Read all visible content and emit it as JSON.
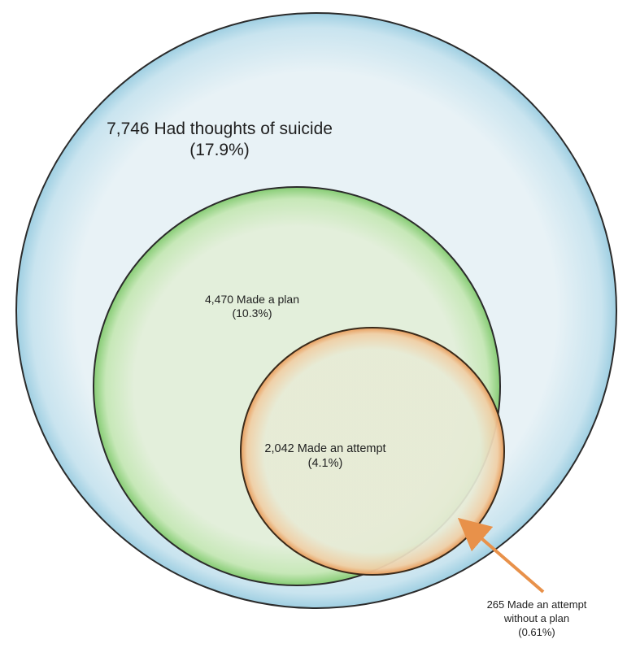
{
  "circles": {
    "thoughts": {
      "count_label": "7,746 Had thoughts of suicide",
      "pct_label": "(17.9%)",
      "count": 7746,
      "percent": 17.9,
      "fill": "#e6f1f6",
      "edge": "#a9d3e4",
      "stroke": "#2b2b2b"
    },
    "plan": {
      "count_label": "4,470 Made a plan",
      "pct_label": "(10.3%)",
      "count": 4470,
      "percent": 10.3,
      "fill": "#e2f0d8",
      "edge": "#8fd07f",
      "stroke": "#2b2b2b"
    },
    "attempt": {
      "count_label": "2,042 Made an attempt",
      "pct_label": "(4.1%)",
      "count": 2042,
      "percent": 4.1,
      "fill": "#e6ead2",
      "edge": "#e8a56a",
      "stroke": "#3a2a1a"
    }
  },
  "callout": {
    "line1": "265 Made an attempt",
    "line2": "without a plan",
    "line3": "(0.61%)",
    "count": 265,
    "percent": 0.61,
    "arrow_color": "#e8914a"
  }
}
